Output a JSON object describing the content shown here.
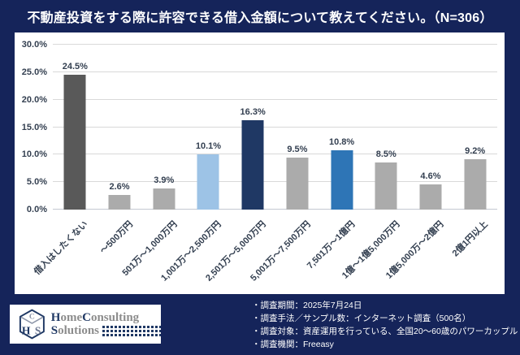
{
  "title": "不動産投資をする際に許容できる借入金額について教えてください。（N=306）",
  "chart_data": {
    "type": "bar",
    "title": "不動産投資をする際に許容できる借入金額について教えてください。（N=306）",
    "categories": [
      "借入はしたくない",
      "～500万円",
      "501万～1,000万円",
      "1,001万～2,500万円",
      "2,501万～5,000万円",
      "5,001万～7,500万円",
      "7,501万～1億円",
      "1億～1億5,000万円",
      "1億5,000万～2億円",
      "2億1円以上"
    ],
    "values": [
      24.5,
      2.6,
      3.9,
      10.1,
      16.3,
      9.5,
      10.8,
      8.5,
      4.6,
      9.2
    ],
    "value_labels": [
      "24.5%",
      "2.6%",
      "3.9%",
      "10.1%",
      "16.3%",
      "9.5%",
      "10.8%",
      "8.5%",
      "4.6%",
      "9.2%"
    ],
    "bar_colors": [
      "#595959",
      "#ABABAB",
      "#ABABAB",
      "#9DC3E6",
      "#1F3864",
      "#ABABAB",
      "#2E75B6",
      "#ABABAB",
      "#ABABAB",
      "#ABABAB"
    ],
    "y_ticks": [
      "30.0%",
      "25.0%",
      "20.0%",
      "15.0%",
      "10.0%",
      "5.0%",
      "0.0%"
    ],
    "ylim": [
      0,
      30
    ],
    "grid": true,
    "legend_position": "none",
    "xlabel": "",
    "ylabel": ""
  },
  "footer": {
    "logo": {
      "cube_letters": "HCS",
      "line1": [
        {
          "text": "H",
          "color": "navy"
        },
        {
          "text": "ome",
          "color": "gray"
        },
        {
          "text": "C",
          "color": "navy"
        },
        {
          "text": "onsulting",
          "color": "gray"
        }
      ],
      "line2": [
        {
          "text": "S",
          "color": "navy"
        },
        {
          "text": "olutions",
          "color": "gray"
        }
      ]
    },
    "notes": [
      "・調査期間：2025年7月24日",
      "・調査手法／サンプル数：インターネット調査（500名）",
      "・調査対象：資産運用を行っている、全国20～60歳のパワーカップル",
      "・調査機関：Freeasy"
    ]
  },
  "colors": {
    "background_navy": "#15245A",
    "panel_white": "#FFFFFF",
    "gridline": "#D9D9D9",
    "text_dark": "#333F50",
    "title_text": "#FFFFFF",
    "logo_navy": "#1F3864",
    "logo_gray": "#8C8C8C"
  }
}
